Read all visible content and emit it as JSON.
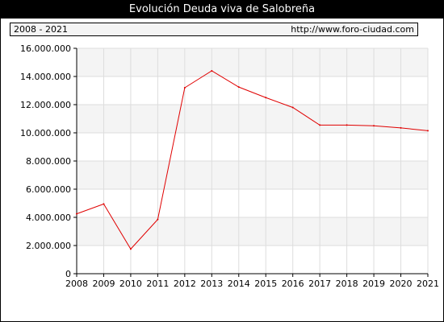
{
  "header": {
    "title": "Evolución Deuda viva de Salobreña",
    "range_label": "2008 - 2021",
    "site_link": "http://www.foro-ciudad.com"
  },
  "colors": {
    "line": "#e00000",
    "band": "#f4f4f4",
    "grid": "#dddddd",
    "title_background": "#000000"
  },
  "chart_data": {
    "type": "line",
    "title": "Evolución Deuda viva de Salobreña",
    "xlabel": "",
    "ylabel": "",
    "x": [
      2008,
      2009,
      2010,
      2011,
      2012,
      2013,
      2014,
      2015,
      2016,
      2017,
      2018,
      2019,
      2020,
      2021
    ],
    "x_tick_labels": [
      "2008",
      "2009",
      "2010",
      "2011",
      "2012",
      "2013",
      "2014",
      "2015",
      "2016",
      "2017",
      "2018",
      "2019",
      "2020",
      "2021"
    ],
    "values": [
      4250000,
      4950000,
      1750000,
      3850000,
      13200000,
      14400000,
      13250000,
      12500000,
      11800000,
      10550000,
      10550000,
      10500000,
      10350000,
      10150000
    ],
    "ylim": [
      0,
      16000000
    ],
    "y_ticks": [
      0,
      2000000,
      4000000,
      6000000,
      8000000,
      10000000,
      12000000,
      14000000,
      16000000
    ],
    "y_tick_labels": [
      "0",
      "2.000.000",
      "4.000.000",
      "6.000.000",
      "8.000.000",
      "10.000.000",
      "12.000.000",
      "14.000.000",
      "16.000.000"
    ],
    "grid": true,
    "legend": "none"
  }
}
